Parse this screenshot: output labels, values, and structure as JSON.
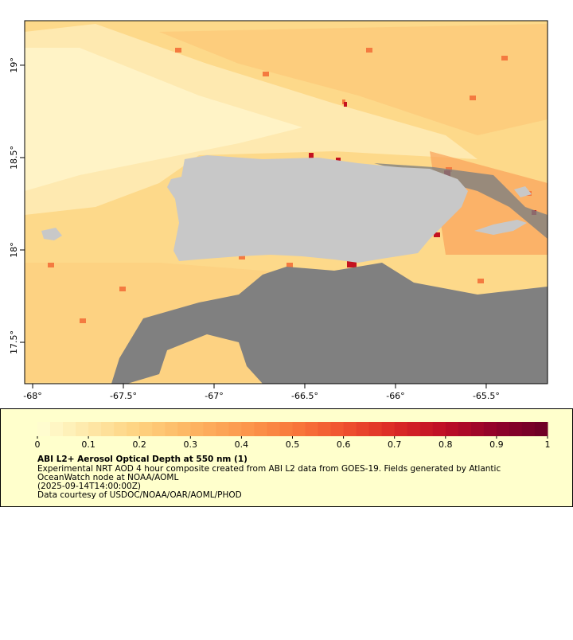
{
  "chart_data": {
    "type": "map",
    "xlim": [
      -68.044,
      -65.162
    ],
    "ylim": [
      17.276,
      19.241
    ],
    "xticks": [
      {
        "value": -68,
        "label": "-68°"
      },
      {
        "value": -67.5,
        "label": "-67.5°"
      },
      {
        "value": -67,
        "label": "-67°"
      },
      {
        "value": -66.5,
        "label": "-66.5°"
      },
      {
        "value": -66,
        "label": "-66°"
      },
      {
        "value": -65.5,
        "label": "-65.5°"
      }
    ],
    "yticks": [
      {
        "value": 17.5,
        "label": "17.5°"
      },
      {
        "value": 18,
        "label": "18°"
      },
      {
        "value": 18.5,
        "label": "18.5°"
      },
      {
        "value": 19,
        "label": "19°"
      }
    ],
    "colorbar": {
      "lim": [
        0,
        1
      ],
      "ticks": [
        0,
        0.1,
        0.2,
        0.3,
        0.4,
        0.5,
        0.6,
        0.7,
        0.8,
        0.9,
        1
      ],
      "colors": [
        "#ffffd4",
        "#fee8a8",
        "#fed27f",
        "#fdb562",
        "#fc9a4e",
        "#f97a3c",
        "#f0522f",
        "#db2a26",
        "#bd0d26",
        "#8f0229",
        "#6b0026"
      ]
    },
    "title": "ABI L2+ Aerosol Optical Depth at 550 nm (1)",
    "caption_lines": [
      "Experimental NRT AOD 4 hour composite created from ABI L2 data from GOES-19. Fields generated by Atlantic",
      "OceanWatch node at NOAA/AOML",
      "(2025-09-14T14:00:00Z)",
      "Data courtesy of USDOC/NOAA/OAR/AOML/PHOD"
    ]
  }
}
